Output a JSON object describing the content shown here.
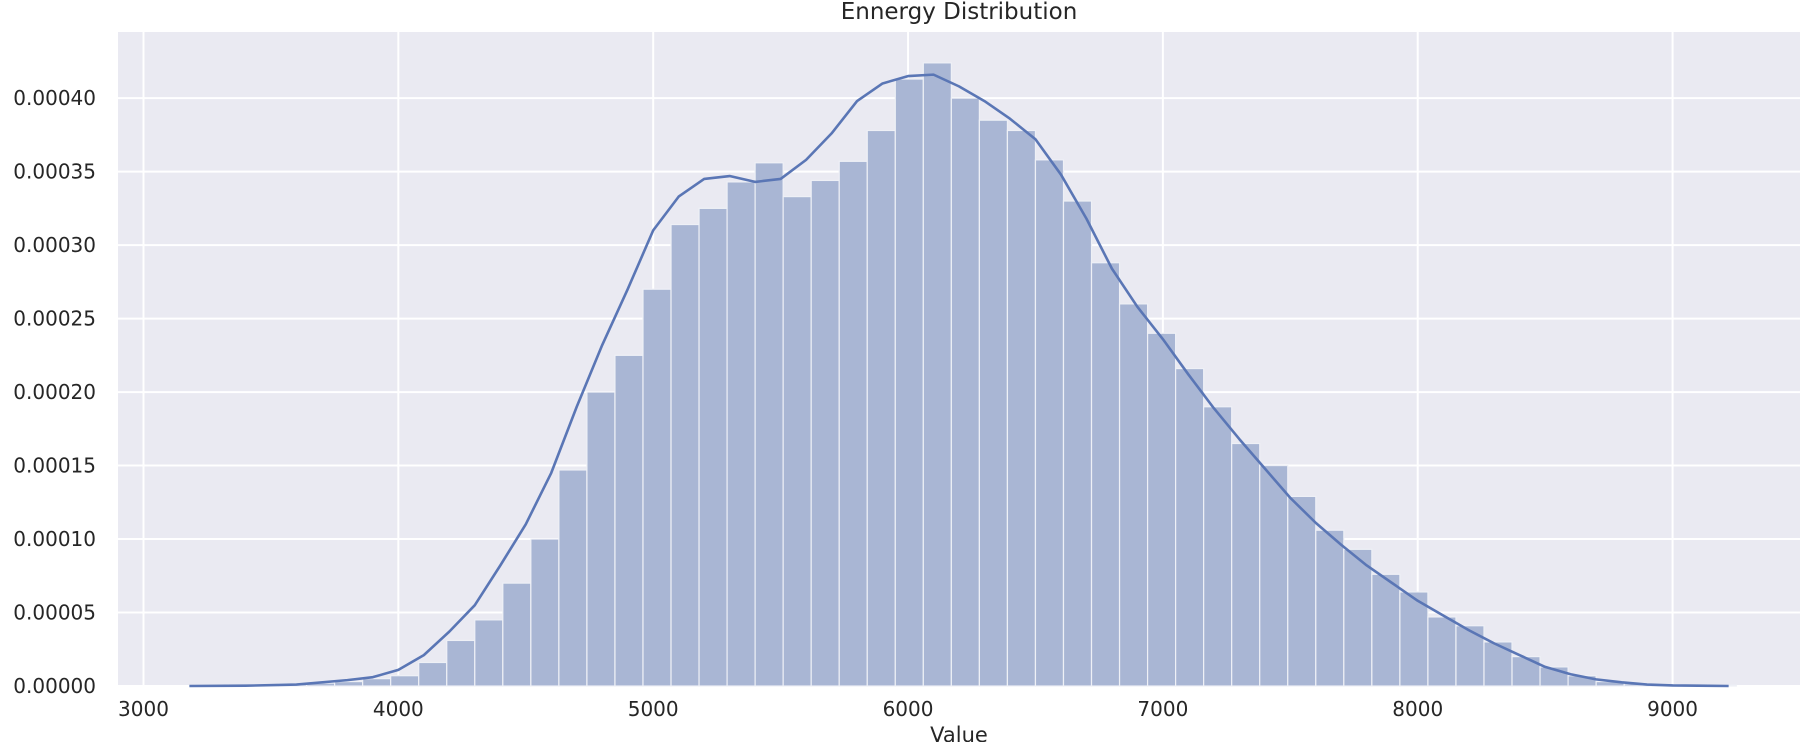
{
  "chart_data": {
    "type": "bar",
    "title": "Ennergy Distribution",
    "xlabel": "Value",
    "ylabel": "",
    "xlim": [
      2900,
      9500
    ],
    "ylim": [
      0,
      0.000445
    ],
    "grid": true,
    "legend": "none",
    "colors": {
      "background": "#eaeaf2",
      "grid": "#ffffff",
      "bar_fill": "#a9b6d4",
      "bar_edge": "#eef0f6",
      "kde_line": "#5a76b5"
    },
    "xticks": [
      3000,
      4000,
      5000,
      6000,
      7000,
      8000,
      9000
    ],
    "xtick_labels": [
      "3000",
      "4000",
      "5000",
      "6000",
      "7000",
      "8000",
      "9000"
    ],
    "yticks": [
      0,
      5e-05,
      0.0001,
      0.00015,
      0.0002,
      0.00025,
      0.0003,
      0.00035,
      0.0004
    ],
    "ytick_labels": [
      "0.00000",
      "0.00005",
      "0.00010",
      "0.00015",
      "0.00020",
      "0.00025",
      "0.00030",
      "0.00035",
      "0.00040"
    ],
    "histogram": {
      "bin_edges": [
        3200,
        3310,
        3420,
        3530,
        3640,
        3750,
        3860,
        3970,
        4080,
        4190,
        4300,
        4410,
        4520,
        4630,
        4740,
        4850,
        4960,
        5070,
        5180,
        5290,
        5400,
        5510,
        5620,
        5730,
        5840,
        5950,
        6060,
        6170,
        6280,
        6390,
        6500,
        6610,
        6720,
        6830,
        6940,
        7050,
        7160,
        7270,
        7380,
        7490,
        7600,
        7710,
        7820,
        7930,
        8040,
        8150,
        8260,
        8370,
        8480,
        8590,
        8700,
        8810,
        8920,
        9030,
        9140,
        9250
      ],
      "density": [
        5e-07,
        5e-07,
        1e-06,
        1.5e-06,
        2e-06,
        3e-06,
        5e-06,
        7e-06,
        1.6e-05,
        3.1e-05,
        4.5e-05,
        7e-05,
        0.0001,
        0.000147,
        0.0002,
        0.000225,
        0.00027,
        0.000314,
        0.000325,
        0.000343,
        0.000356,
        0.000333,
        0.000344,
        0.000357,
        0.000378,
        0.000413,
        0.000424,
        0.0004,
        0.000385,
        0.000378,
        0.000358,
        0.00033,
        0.000288,
        0.00026,
        0.00024,
        0.000216,
        0.00019,
        0.000165,
        0.00015,
        0.000129,
        0.000106,
        9.3e-05,
        7.6e-05,
        6.4e-05,
        4.7e-05,
        4.1e-05,
        3e-05,
        2e-05,
        1.3e-05,
        7e-06,
        3e-06,
        1.5e-06,
        1e-06,
        5e-07,
        5e-07
      ]
    },
    "kde": {
      "x": [
        3180,
        3400,
        3600,
        3800,
        3900,
        4000,
        4100,
        4200,
        4300,
        4400,
        4500,
        4600,
        4700,
        4800,
        4900,
        5000,
        5100,
        5200,
        5300,
        5400,
        5500,
        5600,
        5700,
        5800,
        5900,
        6000,
        6100,
        6200,
        6300,
        6400,
        6500,
        6600,
        6700,
        6800,
        6900,
        7000,
        7100,
        7200,
        7300,
        7400,
        7500,
        7600,
        7700,
        7800,
        7900,
        8000,
        8100,
        8200,
        8300,
        8400,
        8500,
        8600,
        8700,
        8800,
        8900,
        9000,
        9100,
        9220
      ],
      "y": [
        0.0,
        2e-07,
        1e-06,
        4e-06,
        6e-06,
        1.1e-05,
        2.1e-05,
        3.7e-05,
        5.5e-05,
        8.2e-05,
        0.00011,
        0.000145,
        0.00019,
        0.000232,
        0.00027,
        0.00031,
        0.000333,
        0.000345,
        0.000347,
        0.000343,
        0.000345,
        0.000358,
        0.000376,
        0.000398,
        0.00041,
        0.000415,
        0.000416,
        0.000408,
        0.000398,
        0.000386,
        0.000372,
        0.000348,
        0.000318,
        0.000284,
        0.000258,
        0.000236,
        0.000212,
        0.000189,
        0.000168,
        0.000148,
        0.000128,
        0.000111,
        9.6e-05,
        8.2e-05,
        7e-05,
        5.8e-05,
        4.8e-05,
        3.8e-05,
        2.9e-05,
        2.1e-05,
        1.3e-05,
        8e-06,
        4.5e-06,
        2.5e-06,
        1e-06,
        4e-07,
        2e-07,
        0.0
      ]
    }
  }
}
